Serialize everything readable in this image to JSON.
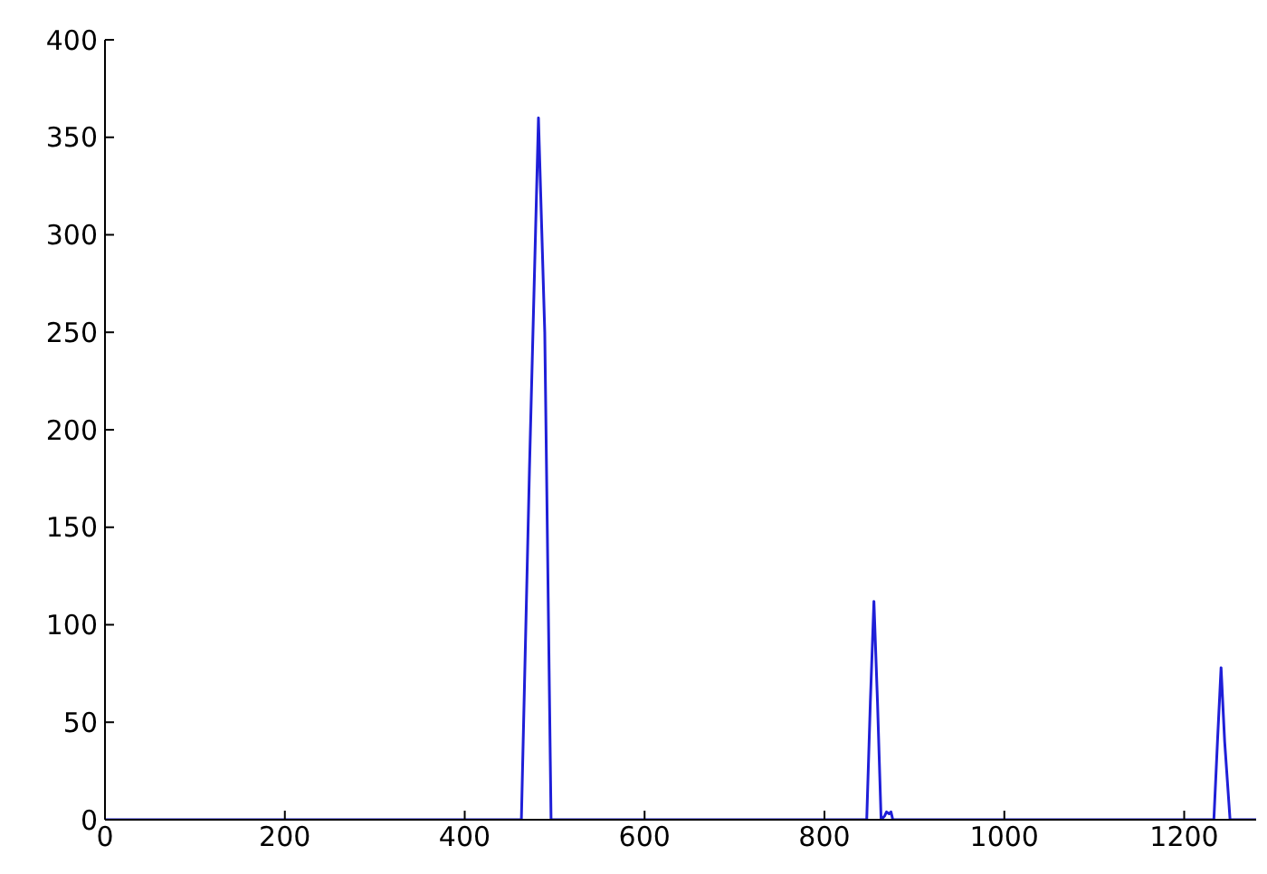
{
  "chart_data": {
    "type": "line",
    "x": [
      0,
      463,
      472,
      482,
      489,
      496,
      847,
      851,
      855,
      859,
      863,
      867,
      869,
      872,
      874,
      876,
      1233,
      1237,
      1241,
      1245,
      1251,
      1280
    ],
    "series": [
      {
        "color": "#1f1fd8",
        "values": [
          0,
          0,
          180,
          360,
          250,
          0,
          0,
          60,
          112,
          60,
          0,
          2,
          4,
          3,
          4,
          0,
          0,
          40,
          78,
          40,
          0,
          0
        ]
      }
    ],
    "xlim": [
      0,
      1280
    ],
    "xticks": [
      0,
      200,
      400,
      600,
      800,
      1000,
      1200
    ],
    "ylim": [
      0,
      400
    ],
    "yticks": [
      0,
      50,
      100,
      150,
      200,
      250,
      300,
      350,
      400
    ],
    "grid": false,
    "legend": false,
    "marker": "none",
    "line_style": "solid"
  }
}
